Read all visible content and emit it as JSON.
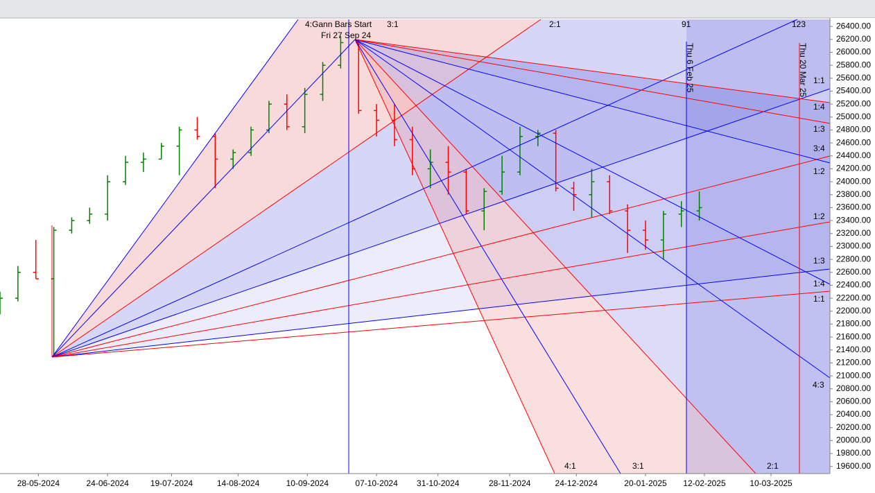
{
  "chart_data": {
    "type": "ohlc",
    "xlim": [
      "13-05-2024",
      "02-04-2025"
    ],
    "xticks": [
      "28-05-2024",
      "24-06-2024",
      "19-07-2024",
      "14-08-2024",
      "10-09-2024",
      "07-10-2024",
      "31-10-2024",
      "28-11-2024",
      "24-12-2024",
      "20-01-2025",
      "12-02-2025",
      "10-03-2025"
    ],
    "ylim": [
      19490,
      26530
    ],
    "yticks": [
      {
        "value": 19600,
        "label": "19600.00"
      },
      {
        "value": 19800,
        "label": "19800.00"
      },
      {
        "value": 20000,
        "label": "20000.00"
      },
      {
        "value": 20200,
        "label": "20200.00"
      },
      {
        "value": 20400,
        "label": "20400.00"
      },
      {
        "value": 20600,
        "label": "20600.00"
      },
      {
        "value": 20800,
        "label": "20800.00"
      },
      {
        "value": 21000,
        "label": "21000.00"
      },
      {
        "value": 21200,
        "label": "21200.00"
      },
      {
        "value": 21400,
        "label": "21400.00"
      },
      {
        "value": 21600,
        "label": "21600.00"
      },
      {
        "value": 21800,
        "label": "21800.00"
      },
      {
        "value": 22000,
        "label": "22000.00"
      },
      {
        "value": 22200,
        "label": "22200.00"
      },
      {
        "value": 22400,
        "label": "22400.00"
      },
      {
        "value": 22600,
        "label": "22600.00"
      },
      {
        "value": 22800,
        "label": "22800.00"
      },
      {
        "value": 23000,
        "label": "23000.00"
      },
      {
        "value": 23200,
        "label": "23200.00"
      },
      {
        "value": 23400,
        "label": "23400.00"
      },
      {
        "value": 23600,
        "label": "23600.00"
      },
      {
        "value": 23800,
        "label": "23800.00"
      },
      {
        "value": 24000,
        "label": "24000.00"
      },
      {
        "value": 24200,
        "label": "24200.00"
      },
      {
        "value": 24400,
        "label": "24400.00"
      },
      {
        "value": 24600,
        "label": "24600.00"
      },
      {
        "value": 24800,
        "label": "24800.00"
      },
      {
        "value": 25000,
        "label": "25000.00"
      },
      {
        "value": 25200,
        "label": "25200.00"
      },
      {
        "value": 25400,
        "label": "25400.00"
      },
      {
        "value": 25600,
        "label": "25600.00"
      },
      {
        "value": 25800,
        "label": "25800.00"
      },
      {
        "value": 26000,
        "label": "26000.00"
      },
      {
        "value": 26200,
        "label": "26200.00"
      },
      {
        "value": 26400,
        "label": "26400.00"
      }
    ],
    "up_color": "#008000",
    "down_color": "#ff0000",
    "x": [
      "13-05-2024",
      "20-05-2024",
      "27-05-2024",
      "03-06-2024",
      "10-06-2024",
      "17-06-2024",
      "24-06-2024",
      "01-07-2024",
      "08-07-2024",
      "15-07-2024",
      "22-07-2024",
      "29-07-2024",
      "05-08-2024",
      "12-08-2024",
      "19-08-2024",
      "26-08-2024",
      "02-09-2024",
      "09-09-2024",
      "16-09-2024",
      "23-09-2024",
      "30-09-2024",
      "07-10-2024",
      "14-10-2024",
      "21-10-2024",
      "28-10-2024",
      "04-11-2024",
      "11-11-2024",
      "18-11-2024",
      "25-11-2024",
      "02-12-2024",
      "09-12-2024",
      "16-12-2024",
      "23-12-2024",
      "30-12-2024",
      "06-01-2025",
      "13-01-2025",
      "20-01-2025",
      "27-01-2025",
      "03-02-2025",
      "10-02-2025"
    ],
    "open": [
      22000,
      22200,
      22600,
      22500,
      23250,
      23400,
      23500,
      24000,
      24300,
      24350,
      24550,
      24800,
      24700,
      24350,
      24450,
      24800,
      25200,
      24850,
      25350,
      25800,
      26150,
      25100,
      24950,
      24650,
      24200,
      24300,
      24150,
      23550,
      23850,
      24150,
      24700,
      24750,
      23900,
      23800,
      24000,
      23550,
      23250,
      23100,
      23500,
      23550
    ],
    "high": [
      22300,
      22700,
      23100,
      23300,
      23450,
      23600,
      24100,
      24400,
      24450,
      24600,
      24850,
      25000,
      24750,
      24500,
      24850,
      25250,
      25350,
      25450,
      25850,
      26250,
      26200,
      25200,
      25200,
      24850,
      24500,
      24550,
      24200,
      23900,
      24400,
      24850,
      24800,
      24800,
      24000,
      24200,
      24100,
      23650,
      23400,
      23550,
      23700,
      23850
    ],
    "low": [
      21950,
      22150,
      22500,
      21300,
      23200,
      23350,
      23400,
      23950,
      24150,
      24350,
      24100,
      24650,
      23900,
      24200,
      24400,
      24750,
      24800,
      24750,
      25250,
      25750,
      25050,
      24700,
      24550,
      24100,
      23900,
      23800,
      23500,
      23250,
      23800,
      24100,
      24550,
      23850,
      23550,
      23450,
      23500,
      22900,
      22950,
      22800,
      23300,
      23400
    ],
    "close": [
      22200,
      22600,
      22500,
      23250,
      23400,
      23500,
      24000,
      24300,
      24350,
      24550,
      24800,
      24700,
      24350,
      24450,
      24800,
      25200,
      24850,
      25350,
      25800,
      26150,
      25100,
      24950,
      24650,
      24200,
      24300,
      24150,
      23550,
      23850,
      24150,
      24700,
      24750,
      23900,
      23800,
      24000,
      23550,
      23250,
      23100,
      23500,
      23550,
      23600
    ],
    "annotations": [
      "4:Gann Bars Start",
      "3:1",
      "Fri 27 Sep 24",
      "2:1",
      "91",
      "123",
      "Thu 6 Feb 25",
      "Thu 20 Mar 25",
      "1:1",
      "1:4",
      "1:3",
      "3:4",
      "1:2",
      "1:2",
      "1:3",
      "1:4",
      "1:1",
      "4:3",
      "4:1",
      "3:1",
      "2:1"
    ]
  }
}
